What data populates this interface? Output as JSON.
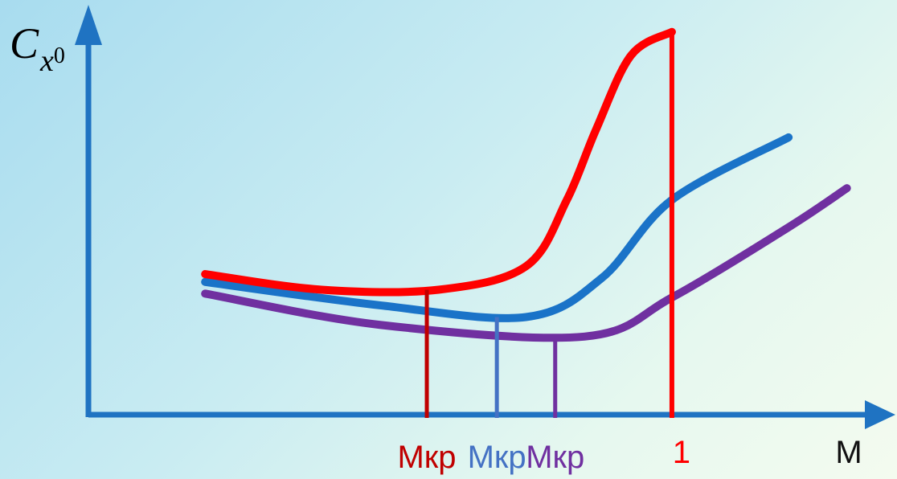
{
  "colors": {
    "axis": "#1f73c2",
    "red": "#ff0000",
    "blue": "#1a73c8",
    "purple": "#7030a0",
    "mkr_red": "#c00000",
    "mkr_blue": "#4472c4",
    "mkr_purple": "#7030a0"
  },
  "chart_data": {
    "type": "line",
    "title": "",
    "xlabel": "M",
    "ylabel_base": "C",
    "ylabel_sub": "x",
    "ylabel_subsub": "0",
    "xlim": [
      0,
      1.35
    ],
    "ylim": [
      0,
      1
    ],
    "grid": false,
    "legend": "none",
    "series": [
      {
        "color": "red",
        "x": [
          0.2,
          0.4,
          0.6,
          0.75,
          0.82,
          0.87,
          0.93,
          1.0
        ],
        "y": [
          0.36,
          0.32,
          0.32,
          0.38,
          0.55,
          0.73,
          0.92,
          0.98
        ]
      },
      {
        "color": "blue",
        "x": [
          0.2,
          0.5,
          0.75,
          0.88,
          1.0,
          1.2
        ],
        "y": [
          0.34,
          0.28,
          0.25,
          0.35,
          0.55,
          0.71
        ]
      },
      {
        "color": "purple",
        "x": [
          0.2,
          0.5,
          0.85,
          1.0,
          1.2,
          1.3
        ],
        "y": [
          0.31,
          0.23,
          0.2,
          0.3,
          0.48,
          0.58
        ]
      }
    ],
    "vlines": [
      {
        "x": 0.58,
        "y": 0.32,
        "color": "mkr_red"
      },
      {
        "x": 0.7,
        "y": 0.25,
        "color": "mkr_blue"
      },
      {
        "x": 0.8,
        "y": 0.2,
        "color": "mkr_purple"
      },
      {
        "x": 1.0,
        "y": 0.98,
        "color": "red"
      }
    ],
    "tick_labels": [
      {
        "x": 0.58,
        "text": "Мкр",
        "color": "mkr_red"
      },
      {
        "x": 0.7,
        "text": "Мкр",
        "color": "mkr_blue"
      },
      {
        "x": 0.8,
        "text": "Мкр",
        "color": "mkr_purple"
      },
      {
        "x": 1.0,
        "text": "1",
        "color": "red"
      }
    ]
  }
}
